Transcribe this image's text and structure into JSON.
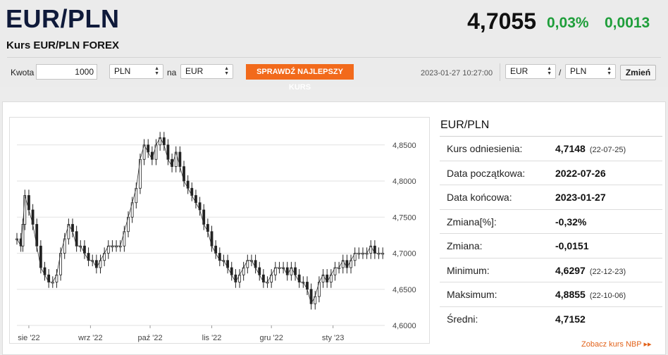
{
  "header": {
    "title": "EUR/PLN",
    "subtitle": "Kurs EUR/PLN FOREX",
    "rate": "4,7055",
    "change_pct": "0,03%",
    "change_abs": "0,0013"
  },
  "converter": {
    "amount_label": "Kwota",
    "amount_value": "1000",
    "from_currency": "PLN",
    "to_label": "na",
    "to_currency": "EUR",
    "best_rate_button": "SPRAWDŹ NAJLEPSZY KURS",
    "timestamp": "2023-01-27 10:27:00",
    "pair_base": "EUR",
    "pair_sep": "/",
    "pair_quote": "PLN",
    "change_button": "Zmień"
  },
  "colors": {
    "accent": "#f26a1b",
    "positive": "#1e9e3a",
    "title": "#0f1a3a"
  },
  "stats": {
    "title": "EUR/PLN",
    "rows": [
      {
        "label": "Kurs odniesienia:",
        "value": "4,7148",
        "date": "(22-07-25)"
      },
      {
        "label": "Data początkowa:",
        "value": "2022-07-26",
        "date": ""
      },
      {
        "label": "Data końcowa:",
        "value": "2023-01-27",
        "date": ""
      },
      {
        "label": "Zmiana[%]:",
        "value": "-0,32%",
        "date": ""
      },
      {
        "label": "Zmiana:",
        "value": "-0,0151",
        "date": ""
      },
      {
        "label": "Minimum:",
        "value": "4,6297",
        "date": "(22-12-23)"
      },
      {
        "label": "Maksimum:",
        "value": "4,8855",
        "date": "(22-10-06)"
      },
      {
        "label": "Średni:",
        "value": "4,7152",
        "date": ""
      }
    ],
    "nbp_link": "Zobacz kurs NBP ▸▸"
  },
  "chart_data": {
    "type": "line",
    "subtype": "candlestick-like price series",
    "ylim": [
      4.6,
      4.88
    ],
    "yticks": [
      4.6,
      4.65,
      4.7,
      4.75,
      4.8,
      4.85
    ],
    "ytick_labels": [
      "4,6000",
      "4,6500",
      "4,7000",
      "4,7500",
      "4,8000",
      "4,8500"
    ],
    "xtick_labels": [
      "sie '22",
      "wrz '22",
      "paź '22",
      "lis '22",
      "gru '22",
      "sty '23"
    ],
    "xtick_days": [
      6,
      37,
      67,
      98,
      128,
      159
    ],
    "total_days": 185,
    "grid": true,
    "points": [
      [
        0,
        4.72
      ],
      [
        2,
        4.71
      ],
      [
        3,
        4.74
      ],
      [
        4,
        4.78
      ],
      [
        6,
        4.76
      ],
      [
        8,
        4.74
      ],
      [
        10,
        4.71
      ],
      [
        12,
        4.68
      ],
      [
        14,
        4.67
      ],
      [
        16,
        4.66
      ],
      [
        18,
        4.66
      ],
      [
        20,
        4.67
      ],
      [
        22,
        4.7
      ],
      [
        24,
        4.72
      ],
      [
        26,
        4.74
      ],
      [
        28,
        4.73
      ],
      [
        30,
        4.71
      ],
      [
        32,
        4.71
      ],
      [
        34,
        4.7
      ],
      [
        36,
        4.69
      ],
      [
        38,
        4.69
      ],
      [
        40,
        4.68
      ],
      [
        42,
        4.69
      ],
      [
        44,
        4.7
      ],
      [
        46,
        4.71
      ],
      [
        48,
        4.71
      ],
      [
        50,
        4.71
      ],
      [
        52,
        4.71
      ],
      [
        54,
        4.73
      ],
      [
        56,
        4.75
      ],
      [
        58,
        4.77
      ],
      [
        60,
        4.79
      ],
      [
        62,
        4.83
      ],
      [
        64,
        4.85
      ],
      [
        66,
        4.84
      ],
      [
        68,
        4.83
      ],
      [
        70,
        4.85
      ],
      [
        72,
        4.86
      ],
      [
        74,
        4.85
      ],
      [
        76,
        4.83
      ],
      [
        78,
        4.82
      ],
      [
        80,
        4.84
      ],
      [
        82,
        4.82
      ],
      [
        84,
        4.8
      ],
      [
        86,
        4.79
      ],
      [
        88,
        4.78
      ],
      [
        90,
        4.77
      ],
      [
        92,
        4.76
      ],
      [
        94,
        4.74
      ],
      [
        96,
        4.73
      ],
      [
        98,
        4.71
      ],
      [
        100,
        4.7
      ],
      [
        102,
        4.69
      ],
      [
        104,
        4.69
      ],
      [
        106,
        4.68
      ],
      [
        108,
        4.67
      ],
      [
        110,
        4.66
      ],
      [
        112,
        4.67
      ],
      [
        114,
        4.68
      ],
      [
        116,
        4.69
      ],
      [
        118,
        4.69
      ],
      [
        120,
        4.68
      ],
      [
        122,
        4.67
      ],
      [
        124,
        4.66
      ],
      [
        126,
        4.66
      ],
      [
        128,
        4.67
      ],
      [
        130,
        4.68
      ],
      [
        132,
        4.68
      ],
      [
        134,
        4.68
      ],
      [
        136,
        4.67
      ],
      [
        138,
        4.68
      ],
      [
        140,
        4.67
      ],
      [
        142,
        4.66
      ],
      [
        144,
        4.66
      ],
      [
        146,
        4.65
      ],
      [
        148,
        4.63
      ],
      [
        150,
        4.64
      ],
      [
        152,
        4.66
      ],
      [
        154,
        4.67
      ],
      [
        156,
        4.66
      ],
      [
        158,
        4.67
      ],
      [
        160,
        4.68
      ],
      [
        162,
        4.68
      ],
      [
        164,
        4.69
      ],
      [
        166,
        4.68
      ],
      [
        168,
        4.69
      ],
      [
        170,
        4.7
      ],
      [
        172,
        4.7
      ],
      [
        174,
        4.7
      ],
      [
        176,
        4.7
      ],
      [
        178,
        4.71
      ],
      [
        180,
        4.7
      ],
      [
        182,
        4.7
      ],
      [
        184,
        4.7
      ]
    ]
  }
}
